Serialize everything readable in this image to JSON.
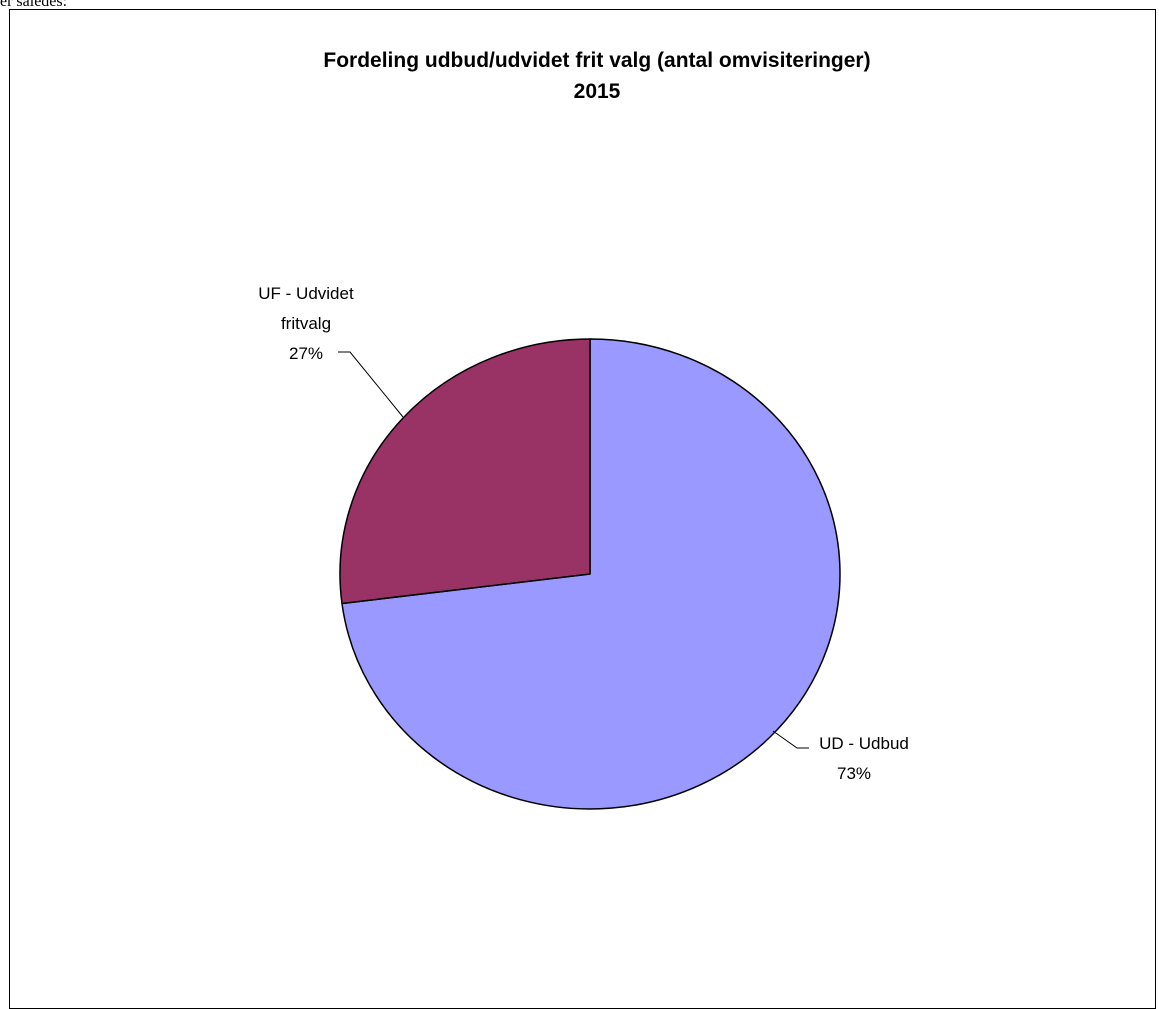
{
  "document": {
    "fragment_text": "er således:"
  },
  "chart_data": {
    "type": "pie",
    "title_lines": [
      "Fordeling udbud/udvidet frit valg (antal omvisiteringer)",
      "2015"
    ],
    "legend": "none",
    "slices": [
      {
        "label_lines": [
          "UD - Udbud"
        ],
        "percent_label": "73%",
        "value": 73,
        "color": "#9999FF"
      },
      {
        "label_lines": [
          "UF - Udvidet",
          "fritvalg"
        ],
        "percent_label": "27%",
        "value": 27,
        "color": "#993366"
      }
    ]
  }
}
